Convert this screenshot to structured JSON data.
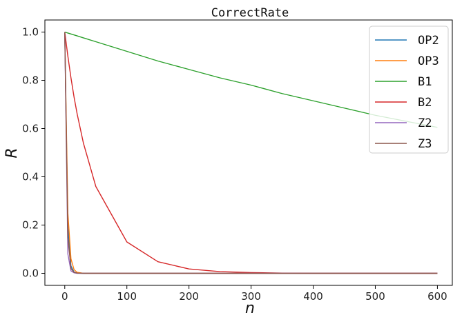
{
  "chart_data": {
    "type": "line",
    "title": "CorrectRate",
    "xlabel": "n",
    "ylabel": "R",
    "xlim": [
      -32,
      624
    ],
    "ylim": [
      -0.05,
      1.05
    ],
    "xticks": [
      0,
      100,
      200,
      300,
      400,
      500,
      600
    ],
    "xtick_labels": [
      "0",
      "100",
      "200",
      "300",
      "400",
      "500",
      "600"
    ],
    "yticks": [
      0.0,
      0.2,
      0.4,
      0.6,
      0.8,
      1.0
    ],
    "ytick_labels": [
      "0.0",
      "0.2",
      "0.4",
      "0.6",
      "0.8",
      "1.0"
    ],
    "grid": false,
    "legend_position": "top-right",
    "x": [
      0,
      5,
      10,
      15,
      20,
      30,
      50,
      100,
      150,
      200,
      250,
      300,
      350,
      400,
      450,
      500,
      550,
      600
    ],
    "series": [
      {
        "name": "OP2",
        "color": "#1f77b4",
        "values": [
          1.0,
          0.2,
          0.03,
          0.005,
          0.001,
          0.0,
          0.0,
          0.0,
          0.0,
          0.0,
          0.0,
          0.0,
          0.0,
          0.0,
          0.0,
          0.0,
          0.0,
          0.0
        ]
      },
      {
        "name": "OP3",
        "color": "#ff7f0e",
        "values": [
          1.0,
          0.25,
          0.06,
          0.015,
          0.004,
          0.0,
          0.0,
          0.0,
          0.0,
          0.0,
          0.0,
          0.0,
          0.0,
          0.0,
          0.0,
          0.0,
          0.0,
          0.0
        ]
      },
      {
        "name": "B1",
        "color": "#2ca02c",
        "values": [
          1.0,
          0.996,
          0.992,
          0.988,
          0.984,
          0.976,
          0.96,
          0.92,
          0.88,
          0.845,
          0.81,
          0.78,
          0.745,
          0.715,
          0.685,
          0.655,
          0.63,
          0.605
        ]
      },
      {
        "name": "B2",
        "color": "#d62728",
        "values": [
          1.0,
          0.9,
          0.81,
          0.73,
          0.66,
          0.54,
          0.36,
          0.13,
          0.048,
          0.018,
          0.007,
          0.003,
          0.001,
          0.0,
          0.0,
          0.0,
          0.0,
          0.0
        ]
      },
      {
        "name": "Z2",
        "color": "#9467bd",
        "values": [
          1.0,
          0.08,
          0.01,
          0.002,
          0.0,
          0.0,
          0.0,
          0.0,
          0.0,
          0.0,
          0.0,
          0.0,
          0.0,
          0.0,
          0.0,
          0.0,
          0.0,
          0.0
        ]
      },
      {
        "name": "Z3",
        "color": "#8c564b",
        "values": [
          1.0,
          0.15,
          0.02,
          0.004,
          0.001,
          0.0,
          0.0,
          0.0,
          0.0,
          0.0,
          0.0,
          0.0,
          0.0,
          0.0,
          0.0,
          0.0,
          0.0,
          0.0
        ]
      }
    ]
  }
}
